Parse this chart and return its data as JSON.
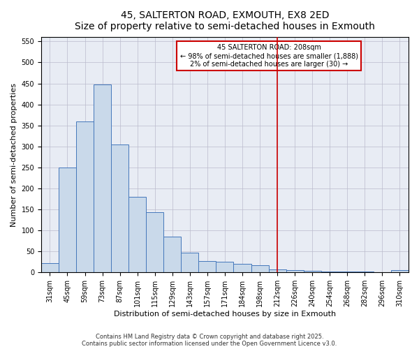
{
  "title_line1": "45, SALTERTON ROAD, EXMOUTH, EX8 2ED",
  "title_line2": "Size of property relative to semi-detached houses in Exmouth",
  "xlabel": "Distribution of semi-detached houses by size in Exmouth",
  "ylabel": "Number of semi-detached properties",
  "bar_labels": [
    "31sqm",
    "45sqm",
    "59sqm",
    "73sqm",
    "87sqm",
    "101sqm",
    "115sqm",
    "129sqm",
    "143sqm",
    "157sqm",
    "171sqm",
    "184sqm",
    "198sqm",
    "212sqm",
    "226sqm",
    "240sqm",
    "254sqm",
    "268sqm",
    "282sqm",
    "296sqm",
    "310sqm"
  ],
  "bar_values": [
    22,
    250,
    360,
    448,
    305,
    180,
    143,
    85,
    47,
    27,
    25,
    20,
    17,
    8,
    5,
    4,
    3,
    3,
    2,
    1,
    6
  ],
  "bar_color": "#c9d9ea",
  "bar_edge_color": "#4477bb",
  "ylim": [
    0,
    560
  ],
  "yticks": [
    0,
    50,
    100,
    150,
    200,
    250,
    300,
    350,
    400,
    450,
    500,
    550
  ],
  "vline_x": 13.0,
  "vline_color": "#cc0000",
  "annotation_line1": "45 SALTERTON ROAD: 208sqm",
  "annotation_line2": "← 98% of semi-detached houses are smaller (1,888)",
  "annotation_line3": "2% of semi-detached houses are larger (30) →",
  "background_color": "#e8ecf4",
  "grid_color": "#bbbbcc",
  "footer_line1": "Contains HM Land Registry data © Crown copyright and database right 2025.",
  "footer_line2": "Contains public sector information licensed under the Open Government Licence v3.0.",
  "title_fontsize": 10,
  "subtitle_fontsize": 8.5,
  "axis_label_fontsize": 8,
  "tick_fontsize": 7,
  "annotation_fontsize": 7,
  "footer_fontsize": 6
}
